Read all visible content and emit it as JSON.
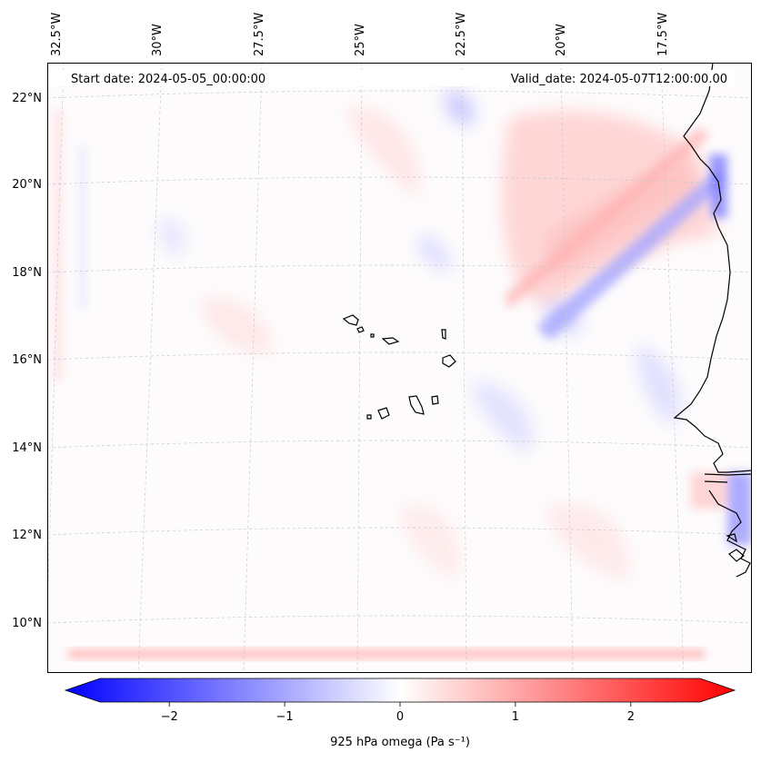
{
  "map": {
    "projection": "conic",
    "lon_labels": [
      "32.5°W",
      "30°W",
      "27.5°W",
      "25°W",
      "22.5°W",
      "20°W",
      "17.5°W"
    ],
    "lat_labels": [
      "22°N",
      "20°N",
      "18°N",
      "16°N",
      "14°N",
      "12°N",
      "10°N"
    ],
    "start_date": "Start date: 2024-05-05_00:00:00",
    "valid_date": "Valid_date: 2024-05-07T12:00:00.00",
    "coastline_color": "#000000",
    "gridline_color": "#c8c8c8"
  },
  "colorbar": {
    "label": "925 hPa omega (Pa s⁻¹)",
    "ticks": [
      "−2",
      "−1",
      "0",
      "1",
      "2"
    ],
    "tick_values": [
      -2,
      -1,
      0,
      1,
      2
    ],
    "vmin": -2.6,
    "vmax": 2.6,
    "cmap": "bwr",
    "color_low": "#0000ff",
    "color_mid": "#ffffff",
    "color_high": "#ff0000"
  }
}
